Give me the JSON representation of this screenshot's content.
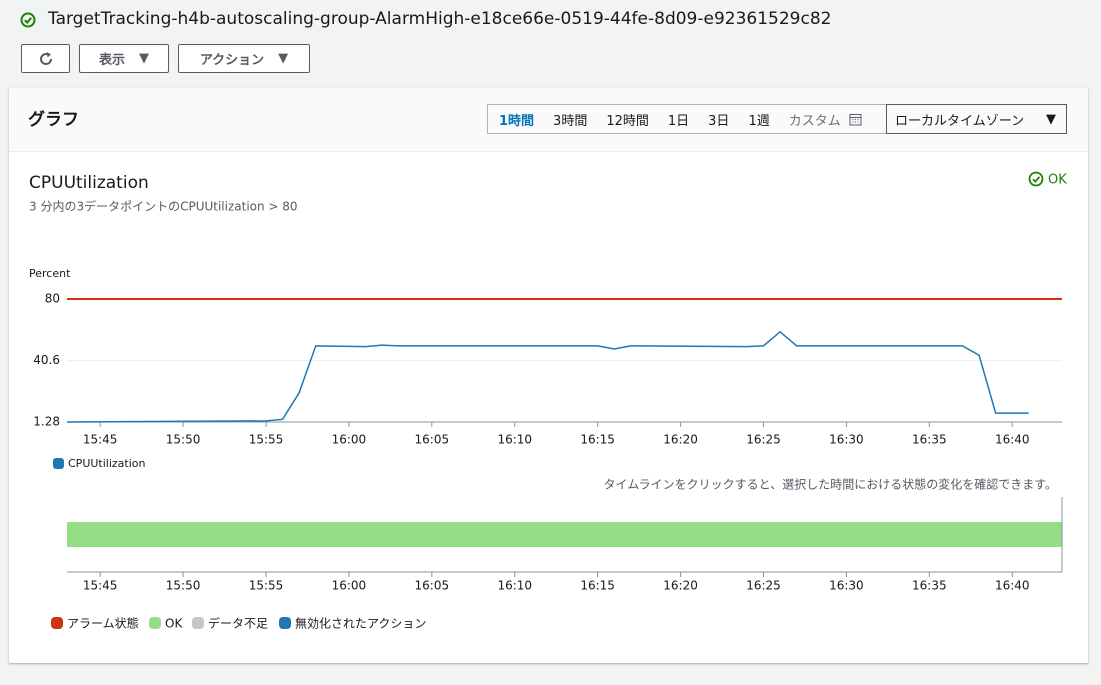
{
  "header": {
    "title": "TargetTracking-h4b-autoscaling-group-AlarmHigh-e18ce66e-0519-44fe-8d09-e92361529c82",
    "buttons": [
      "表示",
      "アクション"
    ]
  },
  "panel": {
    "title": "グラフ",
    "ranges": [
      "1時間",
      "3時間",
      "12時間",
      "1日",
      "3日",
      "1週",
      "カスタム"
    ],
    "selected_range": "1時間",
    "timezone": "ローカルタイムゾーン"
  },
  "chart_data": [
    {
      "type": "line",
      "title": "CPUUtilization",
      "subtitle": "3 分内の3データポイントのCPUUtilization > 80",
      "status": "OK",
      "y_label": "Percent",
      "x": [
        "15:43",
        "15:55",
        "15:56",
        "15:57",
        "15:58",
        "16:01",
        "16:02",
        "16:03",
        "16:15",
        "16:16",
        "16:17",
        "16:24",
        "16:25",
        "16:26",
        "16:27",
        "16:37",
        "16:38",
        "16:39",
        "16:41"
      ],
      "series": [
        {
          "name": "CPUUtilization",
          "color": "#1f77b4",
          "values": [
            1.3,
            2,
            3,
            20,
            50,
            49.5,
            50.5,
            50,
            50,
            48,
            50,
            49.5,
            50,
            59,
            50,
            50,
            44,
            7,
            7
          ]
        }
      ],
      "threshold": {
        "value": 80,
        "color": "#d13212"
      },
      "xlim": [
        "15:43",
        "16:43"
      ],
      "ylim": [
        1.28,
        80
      ],
      "yticks": [
        1.28,
        40.6,
        80
      ],
      "xticks": [
        "15:45",
        "15:50",
        "15:55",
        "16:00",
        "16:05",
        "16:10",
        "16:15",
        "16:20",
        "16:25",
        "16:30",
        "16:35",
        "16:40"
      ],
      "grid": true
    },
    {
      "type": "timeline",
      "caption": "タイムラインをクリックすると、選択した時間における状態の変化を確認できます。",
      "segments": [
        {
          "state": "OK",
          "start": "15:43",
          "end": "16:43"
        }
      ],
      "xlim": [
        "15:43",
        "16:43"
      ],
      "xticks": [
        "15:45",
        "15:50",
        "15:55",
        "16:00",
        "16:05",
        "16:10",
        "16:15",
        "16:20",
        "16:25",
        "16:30",
        "16:35",
        "16:40"
      ],
      "legend": [
        {
          "name": "アラーム状態",
          "color": "#d13212"
        },
        {
          "name": "OK",
          "color": "#95dc87"
        },
        {
          "name": "データ不足",
          "color": "#c6c6c6"
        },
        {
          "name": "無効化されたアクション",
          "color": "#1f77b4"
        }
      ]
    }
  ]
}
